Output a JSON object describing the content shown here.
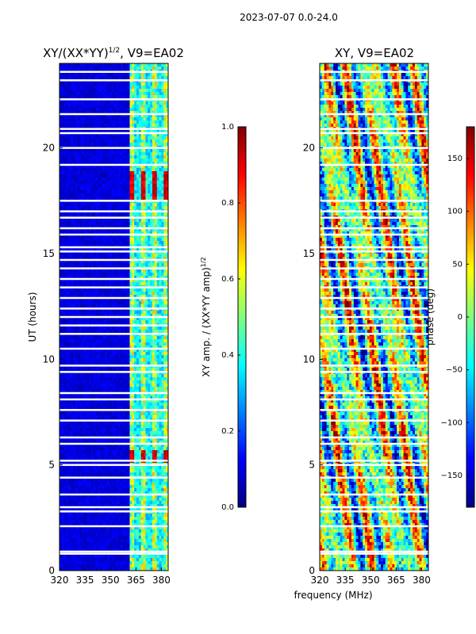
{
  "figure": {
    "suptitle": "2023-07-07 0.0-24.0",
    "shared_xlabel": "frequency (MHz)"
  },
  "colors": {
    "jet": [
      "#00007f",
      "#0000ff",
      "#007fff",
      "#00ffff",
      "#7fff7f",
      "#ffff00",
      "#ff7f00",
      "#ff0000",
      "#7f0000"
    ],
    "gap": "#ffffff",
    "axis": "#000000"
  },
  "chart_data": [
    {
      "type": "heatmap",
      "name": "amplitude-ratio",
      "title_text": "XY/(XX*YY)",
      "title_superscript": "1/2",
      "title_suffix": ", V9=EA02",
      "ylabel": "UT (hours)",
      "xlabel": "",
      "xlim": [
        320,
        384
      ],
      "ylim": [
        0,
        24
      ],
      "x_ticks": [
        320,
        335,
        350,
        365,
        380
      ],
      "y_ticks": [
        0,
        5,
        10,
        15,
        20
      ],
      "colorbar": {
        "label_text": "XY amp. / (XX*YY amp)",
        "label_superscript": "1/2",
        "range": [
          0.0,
          1.0
        ],
        "ticks": [
          "0.0",
          "0.2",
          "0.4",
          "0.6",
          "0.8",
          "1.0"
        ],
        "tick_values": [
          0.0,
          0.2,
          0.4,
          0.6,
          0.8,
          1.0
        ]
      },
      "description_values": {
        "background_level": 0.05,
        "active_band_start_mhz": 361,
        "active_band_peak_level": 0.85,
        "peak_hours": [
          17.9,
          18.6,
          5.4
        ]
      }
    },
    {
      "type": "heatmap",
      "name": "phase",
      "title_text": "XY, V9=EA02",
      "ylabel": "",
      "xlabel": "frequency (MHz)",
      "xlim": [
        320,
        384
      ],
      "ylim": [
        0,
        24
      ],
      "x_ticks": [
        320,
        335,
        350,
        365,
        380
      ],
      "y_ticks": [
        0,
        5,
        10,
        15,
        20
      ],
      "colorbar": {
        "label_text": "phase (deg)",
        "range": [
          -180,
          180
        ],
        "ticks": [
          "150",
          "100",
          "50",
          "0",
          "−50",
          "−100",
          "−150"
        ],
        "tick_values": [
          150,
          100,
          50,
          0,
          -50,
          -100,
          -150
        ]
      }
    }
  ],
  "gap_hours": [
    0.8,
    0.9,
    2.1,
    2.8,
    3.0,
    3.6,
    4.4,
    5.0,
    5.2,
    6.0,
    6.3,
    7.1,
    7.6,
    8.1,
    8.4,
    9.4,
    9.7,
    10.5,
    11.2,
    11.6,
    12.0,
    12.4,
    12.9,
    13.4,
    13.8,
    14.3,
    14.7,
    15.1,
    15.3,
    15.9,
    16.2,
    16.7,
    17.0,
    17.5,
    19.2,
    20.0,
    20.7,
    20.9,
    21.6,
    22.3,
    23.2,
    23.6
  ]
}
